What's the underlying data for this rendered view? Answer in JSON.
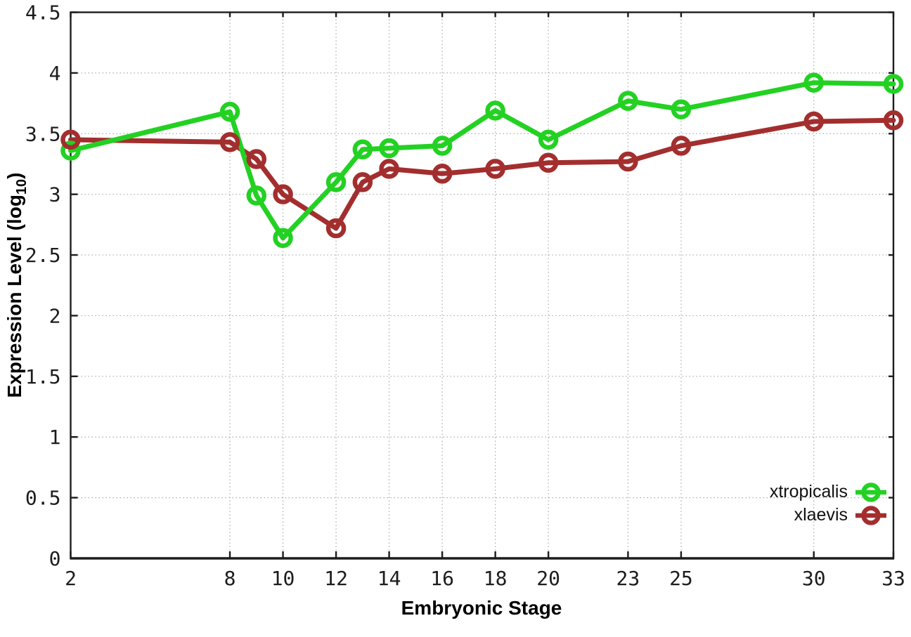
{
  "chart_data": {
    "type": "line",
    "title": "",
    "xlabel": "Embryonic Stage",
    "ylabel_main": "Expression Level (log",
    "ylabel_sub": "10",
    "ylabel_suffix": ")",
    "x": [
      2,
      8,
      9,
      10,
      12,
      13,
      14,
      16,
      18,
      20,
      23,
      25,
      30,
      33
    ],
    "series": [
      {
        "name": "xtropicalis",
        "color": "#23d123",
        "values": [
          3.36,
          3.68,
          2.99,
          2.64,
          3.1,
          3.37,
          3.38,
          3.4,
          3.69,
          3.45,
          3.77,
          3.7,
          3.92,
          3.91
        ]
      },
      {
        "name": "xlaevis",
        "color": "#a32e2e",
        "values": [
          3.45,
          3.43,
          3.29,
          3.0,
          2.72,
          3.1,
          3.21,
          3.17,
          3.21,
          3.26,
          3.27,
          3.4,
          3.6,
          3.61
        ]
      }
    ],
    "xlim": [
      2,
      33
    ],
    "ylim": [
      0,
      4.5
    ],
    "xticks": [
      2,
      8,
      10,
      12,
      14,
      16,
      18,
      20,
      23,
      25,
      30,
      33
    ],
    "xtick_labels": [
      "2",
      "8",
      "10",
      "12",
      "14",
      "16",
      "18",
      "20",
      "23",
      "25",
      "30",
      "33"
    ],
    "yticks": [
      0,
      0.5,
      1,
      1.5,
      2,
      2.5,
      3,
      3.5,
      4,
      4.5
    ],
    "ytick_labels": [
      "0",
      "0.5",
      "1",
      "1.5",
      "2",
      "2.5",
      "3",
      "3.5",
      "4",
      "4.5"
    ],
    "grid": true,
    "legend_position": "inside-bottom-right",
    "axis_color": "#1c1c1c",
    "grid_color": "#a9a9a9",
    "text_color": "#1c1c1c",
    "marker": "open-circle"
  }
}
